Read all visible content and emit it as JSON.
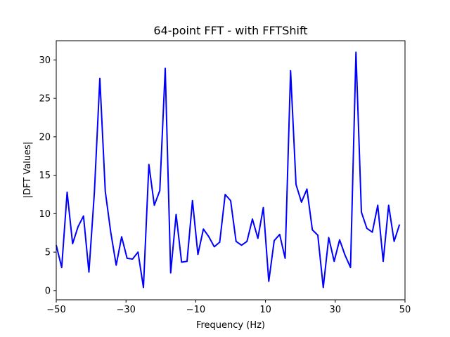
{
  "chart_data": {
    "type": "line",
    "title": "64-point FFT - with FFTShift",
    "xlabel": "Frequency (Hz)",
    "ylabel": "|DFT Values|",
    "xlim": [
      -50,
      50
    ],
    "ylim": [
      -1.2,
      32.5
    ],
    "xticks": [
      -50,
      -30,
      -10,
      10,
      30,
      50
    ],
    "yticks": [
      0,
      5,
      10,
      15,
      20,
      25,
      30
    ],
    "grid": false,
    "series": [
      {
        "color": "#0000ff",
        "x": [
          -50,
          -48.44,
          -46.88,
          -45.31,
          -43.75,
          -42.19,
          -40.63,
          -39.06,
          -37.5,
          -35.94,
          -34.38,
          -32.81,
          -31.25,
          -29.69,
          -28.13,
          -26.56,
          -25,
          -23.44,
          -21.88,
          -20.31,
          -18.75,
          -17.19,
          -15.63,
          -14.06,
          -12.5,
          -10.94,
          -9.38,
          -7.81,
          -6.25,
          -4.69,
          -3.13,
          -1.56,
          0,
          1.56,
          3.13,
          4.69,
          6.25,
          7.81,
          9.38,
          10.94,
          12.5,
          14.06,
          15.63,
          17.19,
          18.75,
          20.31,
          21.88,
          23.44,
          25,
          26.56,
          28.13,
          29.69,
          31.25,
          32.81,
          34.38,
          35.94,
          37.5,
          39.06,
          40.63,
          42.19,
          43.75,
          45.31,
          46.88,
          48.44
        ],
        "y": [
          5.9,
          3.0,
          12.8,
          6.1,
          8.3,
          9.7,
          2.4,
          12.8,
          27.6,
          12.9,
          7.6,
          3.3,
          7.0,
          4.2,
          4.1,
          5.0,
          0.4,
          16.4,
          11.1,
          13.0,
          28.9,
          2.3,
          9.9,
          3.7,
          3.8,
          11.7,
          4.7,
          8.0,
          7.0,
          5.7,
          6.3,
          12.5,
          11.7,
          6.4,
          5.9,
          6.4,
          9.3,
          6.8,
          10.8,
          1.2,
          6.5,
          7.3,
          4.2,
          28.6,
          13.8,
          11.5,
          13.2,
          7.9,
          7.2,
          0.4,
          6.9,
          3.8,
          6.6,
          4.6,
          3.0,
          31.0,
          10.2,
          8.1,
          7.6,
          11.1,
          3.8,
          11.1,
          6.4,
          8.6
        ]
      }
    ]
  }
}
